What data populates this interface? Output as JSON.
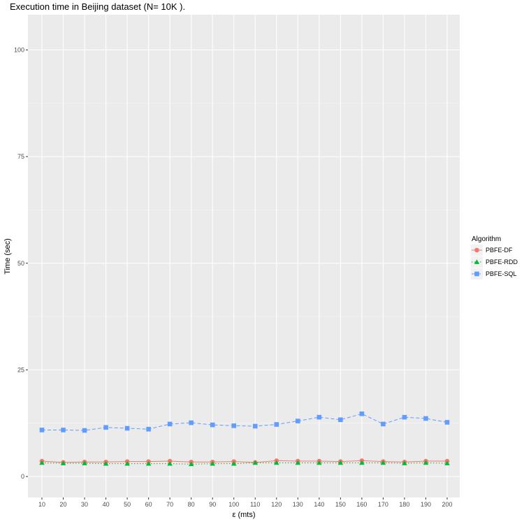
{
  "chart_data": {
    "type": "line",
    "title": "Execution time in Beijing dataset (N= 10K ).",
    "xlabel": "ε (mts)",
    "ylabel": "Time (sec)",
    "x": [
      10,
      20,
      30,
      40,
      50,
      60,
      70,
      80,
      90,
      100,
      110,
      120,
      130,
      140,
      150,
      160,
      170,
      180,
      190,
      200
    ],
    "ylim": [
      -5,
      105
    ],
    "yticks": [
      0,
      25,
      50,
      75,
      100
    ],
    "grid": true,
    "legend": {
      "title": "Algorithm",
      "placement": "right"
    },
    "series": [
      {
        "name": "PBFE-DF",
        "color": "#F8766D",
        "marker": "circle",
        "line": "solid",
        "values": [
          3.6,
          3.3,
          3.4,
          3.4,
          3.5,
          3.5,
          3.6,
          3.4,
          3.4,
          3.5,
          3.3,
          3.7,
          3.6,
          3.6,
          3.5,
          3.7,
          3.5,
          3.4,
          3.6,
          3.6
        ]
      },
      {
        "name": "PBFE-RDD",
        "color": "#00BA38",
        "marker": "triangle",
        "line": "dotted",
        "values": [
          3.2,
          3.1,
          3.1,
          3.0,
          3.0,
          3.0,
          3.0,
          2.9,
          3.0,
          3.0,
          3.2,
          3.2,
          3.2,
          3.2,
          3.2,
          3.2,
          3.2,
          3.1,
          3.2,
          3.1
        ]
      },
      {
        "name": "PBFE-SQL",
        "color": "#619CFF",
        "marker": "square",
        "line": "dashed",
        "values": [
          10.9,
          10.9,
          10.8,
          11.5,
          11.3,
          11.1,
          12.3,
          12.6,
          12.1,
          11.9,
          11.8,
          12.2,
          13.0,
          13.9,
          13.3,
          14.7,
          12.3,
          13.9,
          13.6,
          12.7
        ]
      }
    ]
  }
}
